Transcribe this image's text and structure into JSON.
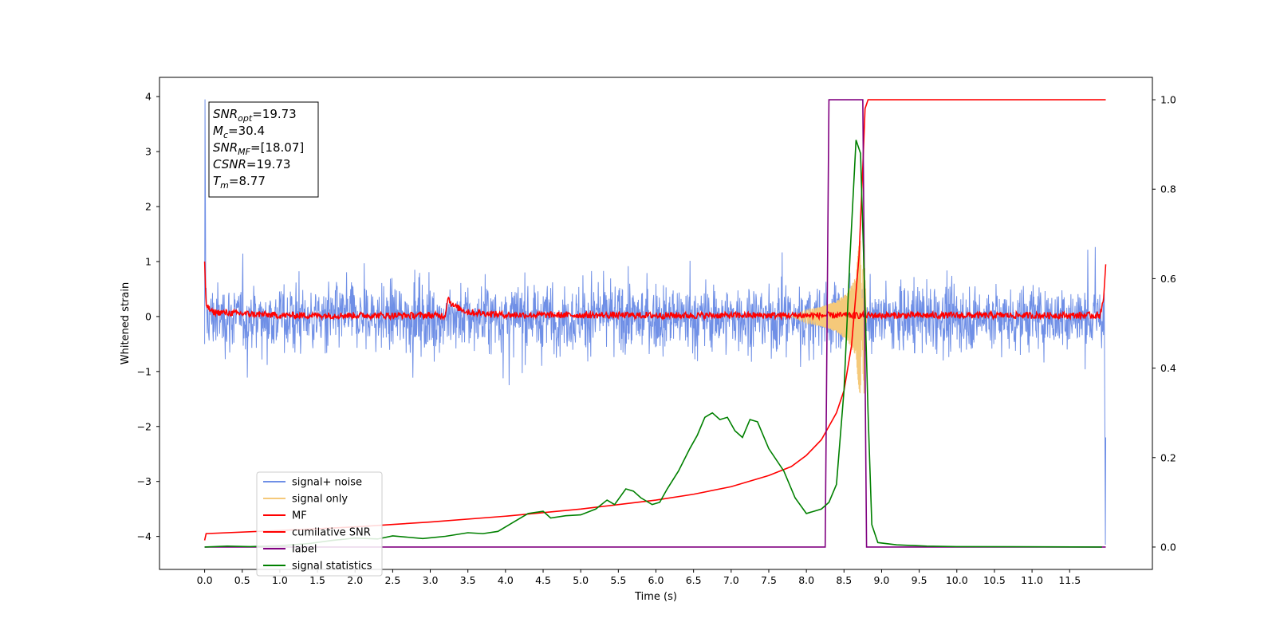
{
  "chart_data": {
    "type": "line",
    "xlabel": "Time (s)",
    "ylabel": "Whitened strain",
    "xlim": [
      -0.6,
      12.6
    ],
    "ylim": [
      -4.6,
      4.35
    ],
    "ylim_right": [
      -0.05,
      1.05
    ],
    "x_ticks": [
      0.0,
      0.5,
      1.0,
      1.5,
      2.0,
      2.5,
      3.0,
      3.5,
      4.0,
      4.5,
      5.0,
      5.5,
      6.0,
      6.5,
      7.0,
      7.5,
      8.0,
      8.5,
      9.0,
      9.5,
      10.0,
      10.5,
      11.0,
      11.5
    ],
    "x_tick_labels": [
      "0.0",
      "0.5",
      "1.0",
      "1.5",
      "2.0",
      "2.5",
      "3.0",
      "3.5",
      "4.0",
      "4.5",
      "5.0",
      "5.5",
      "6.0",
      "6.5",
      "7.0",
      "7.5",
      "8.0",
      "8.5",
      "9.0",
      "9.5",
      "10.0",
      "10.5",
      "11.0",
      "11.5"
    ],
    "y_ticks": [
      -4,
      -3,
      -2,
      -1,
      0,
      1,
      2,
      3,
      4
    ],
    "y_tick_labels": [
      "−4",
      "−3",
      "−2",
      "−1",
      "0",
      "1",
      "2",
      "3",
      "4"
    ],
    "y_right_ticks": [
      0.0,
      0.2,
      0.4,
      0.6,
      0.8,
      1.0
    ],
    "y_right_tick_labels": [
      "0.0",
      "0.2",
      "0.4",
      "0.6",
      "0.8",
      "1.0"
    ],
    "grid": false,
    "legend_position": "lower-left",
    "annotation": {
      "lines": [
        {
          "symbol": "SNR",
          "sub": "opt",
          "value": "=19.73"
        },
        {
          "symbol": "M",
          "sub": "c",
          "value": "=30.4"
        },
        {
          "symbol": "SNR",
          "sub": "MF",
          "value": "=[18.07]"
        },
        {
          "symbol": "CSNR",
          "sub": "",
          "value": "=19.73"
        },
        {
          "symbol": "T",
          "sub": "m",
          "value": "=8.77"
        }
      ]
    },
    "series": [
      {
        "name": "signal+ noise",
        "color": "#6f8fe6",
        "axis": "left",
        "kind": "noise",
        "x_range": [
          0.0,
          11.98
        ],
        "amplitude_envelope": [
          [
            0.0,
            4.0
          ],
          [
            0.01,
            1.2
          ],
          [
            11.97,
            1.2
          ],
          [
            11.98,
            -4.1
          ]
        ],
        "points": [
          [
            0.0,
            -0.5
          ],
          [
            0.005,
            3.95
          ],
          [
            0.01,
            2.3
          ],
          [
            0.015,
            -0.3
          ],
          [
            11.97,
            0.8
          ],
          [
            11.975,
            -4.15
          ],
          [
            11.98,
            -2.2
          ]
        ]
      },
      {
        "name": "signal only",
        "color": "#f5c97a",
        "axis": "left",
        "kind": "chirp",
        "points": [
          [
            7.8,
            0.0
          ],
          [
            8.0,
            0.12
          ],
          [
            8.2,
            0.18
          ],
          [
            8.4,
            0.28
          ],
          [
            8.55,
            0.45
          ],
          [
            8.65,
            0.7
          ],
          [
            8.72,
            1.6
          ],
          [
            8.76,
            -1.7
          ],
          [
            8.8,
            0.0
          ]
        ]
      },
      {
        "name": "MF",
        "color": "#ff0000",
        "axis": "left",
        "kind": "noisy-baseline",
        "points": [
          [
            0.0,
            1.0
          ],
          [
            0.02,
            0.2
          ],
          [
            0.1,
            0.08
          ],
          [
            1.0,
            0.02
          ],
          [
            2.0,
            0.02
          ],
          [
            3.0,
            0.02
          ],
          [
            3.2,
            0.02
          ],
          [
            3.23,
            0.35
          ],
          [
            3.3,
            0.2
          ],
          [
            3.5,
            0.08
          ],
          [
            4.0,
            0.03
          ],
          [
            6.0,
            0.02
          ],
          [
            8.0,
            0.02
          ],
          [
            11.9,
            0.02
          ],
          [
            11.95,
            0.3
          ],
          [
            11.98,
            0.95
          ]
        ]
      },
      {
        "name": "cumilative SNR",
        "color": "#ff0000",
        "axis": "right",
        "points": [
          [
            0.0,
            0.015
          ],
          [
            0.02,
            0.03
          ],
          [
            1.0,
            0.037
          ],
          [
            2.0,
            0.045
          ],
          [
            3.0,
            0.056
          ],
          [
            4.0,
            0.069
          ],
          [
            5.0,
            0.085
          ],
          [
            6.0,
            0.105
          ],
          [
            6.5,
            0.118
          ],
          [
            7.0,
            0.135
          ],
          [
            7.5,
            0.16
          ],
          [
            7.8,
            0.18
          ],
          [
            8.0,
            0.205
          ],
          [
            8.2,
            0.24
          ],
          [
            8.4,
            0.3
          ],
          [
            8.5,
            0.35
          ],
          [
            8.6,
            0.45
          ],
          [
            8.7,
            0.65
          ],
          [
            8.75,
            0.85
          ],
          [
            8.78,
            0.98
          ],
          [
            8.82,
            1.0
          ],
          [
            11.98,
            1.0
          ]
        ]
      },
      {
        "name": "label",
        "color": "#800080",
        "axis": "right",
        "points": [
          [
            0.0,
            0.0
          ],
          [
            8.25,
            0.0
          ],
          [
            8.3,
            1.0
          ],
          [
            8.75,
            1.0
          ],
          [
            8.8,
            0.0
          ],
          [
            11.98,
            0.0
          ]
        ]
      },
      {
        "name": "signal statistics",
        "color": "#008000",
        "axis": "right",
        "points": [
          [
            0.0,
            0.0
          ],
          [
            0.3,
            0.002
          ],
          [
            0.6,
            0.001
          ],
          [
            1.0,
            0.003
          ],
          [
            1.4,
            0.008
          ],
          [
            1.7,
            0.015
          ],
          [
            2.0,
            0.02
          ],
          [
            2.3,
            0.018
          ],
          [
            2.5,
            0.025
          ],
          [
            2.7,
            0.022
          ],
          [
            2.9,
            0.019
          ],
          [
            3.2,
            0.024
          ],
          [
            3.5,
            0.032
          ],
          [
            3.7,
            0.03
          ],
          [
            3.9,
            0.035
          ],
          [
            4.1,
            0.055
          ],
          [
            4.3,
            0.075
          ],
          [
            4.5,
            0.08
          ],
          [
            4.6,
            0.065
          ],
          [
            4.8,
            0.07
          ],
          [
            5.0,
            0.072
          ],
          [
            5.2,
            0.085
          ],
          [
            5.35,
            0.105
          ],
          [
            5.45,
            0.095
          ],
          [
            5.6,
            0.13
          ],
          [
            5.7,
            0.125
          ],
          [
            5.8,
            0.11
          ],
          [
            5.95,
            0.095
          ],
          [
            6.05,
            0.1
          ],
          [
            6.15,
            0.13
          ],
          [
            6.3,
            0.17
          ],
          [
            6.45,
            0.22
          ],
          [
            6.55,
            0.25
          ],
          [
            6.65,
            0.29
          ],
          [
            6.75,
            0.3
          ],
          [
            6.85,
            0.285
          ],
          [
            6.95,
            0.29
          ],
          [
            7.05,
            0.26
          ],
          [
            7.15,
            0.245
          ],
          [
            7.25,
            0.285
          ],
          [
            7.35,
            0.28
          ],
          [
            7.5,
            0.22
          ],
          [
            7.7,
            0.17
          ],
          [
            7.85,
            0.11
          ],
          [
            8.0,
            0.075
          ],
          [
            8.1,
            0.08
          ],
          [
            8.2,
            0.085
          ],
          [
            8.3,
            0.1
          ],
          [
            8.4,
            0.14
          ],
          [
            8.5,
            0.35
          ],
          [
            8.58,
            0.65
          ],
          [
            8.66,
            0.91
          ],
          [
            8.72,
            0.88
          ],
          [
            8.77,
            0.6
          ],
          [
            8.82,
            0.3
          ],
          [
            8.87,
            0.05
          ],
          [
            8.95,
            0.01
          ],
          [
            9.2,
            0.005
          ],
          [
            9.6,
            0.002
          ],
          [
            10.0,
            0.001
          ],
          [
            11.93,
            0.0
          ]
        ]
      }
    ]
  }
}
